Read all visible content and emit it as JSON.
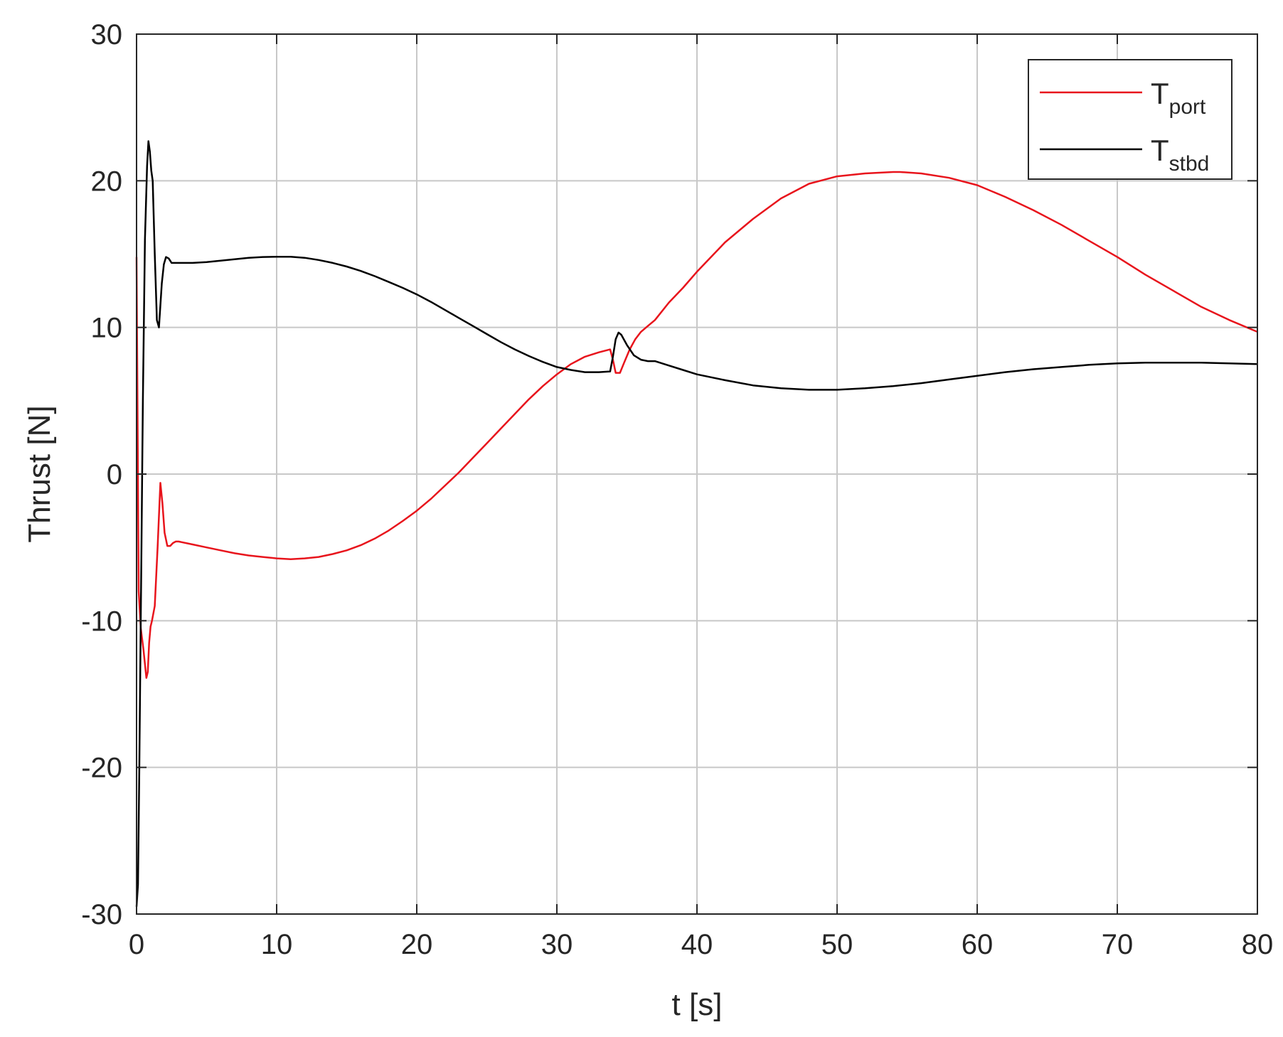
{
  "chart_data": {
    "type": "line",
    "title": "",
    "xlabel": "t [s]",
    "ylabel": "Thrust [N]",
    "xlim": [
      0,
      80
    ],
    "ylim": [
      -30,
      30
    ],
    "xticks": [
      0,
      10,
      20,
      30,
      40,
      50,
      60,
      70,
      80
    ],
    "yticks": [
      -30,
      -20,
      -10,
      0,
      10,
      20,
      30
    ],
    "grid": true,
    "legend_position": "top-right",
    "series": [
      {
        "name": "T",
        "name_sub": "port",
        "color": "#e8141c",
        "x": [
          0,
          0.15,
          0.3,
          0.5,
          0.7,
          0.8,
          0.9,
          1.0,
          1.1,
          1.3,
          1.5,
          1.7,
          1.85,
          2.0,
          2.2,
          2.4,
          2.6,
          2.8,
          3,
          4,
          5,
          6,
          7,
          8,
          9,
          10,
          11,
          12,
          13,
          14,
          15,
          16,
          17,
          18,
          19,
          20,
          21,
          22,
          23,
          24,
          25,
          26,
          27,
          28,
          29,
          30,
          31,
          32,
          33,
          33.8,
          34.0,
          34.2,
          34.5,
          34.8,
          35.2,
          35.6,
          36.0,
          36.5,
          37,
          38,
          39,
          40,
          42,
          44,
          46,
          48,
          50,
          52,
          54,
          54.5,
          56,
          58,
          60,
          62,
          64,
          66,
          68,
          70,
          72,
          74,
          76,
          78,
          80
        ],
        "y": [
          14.8,
          -8.0,
          -10.5,
          -12.0,
          -13.9,
          -13.5,
          -11.5,
          -10.4,
          -10.0,
          -9.0,
          -5.0,
          -0.6,
          -2.0,
          -4.0,
          -4.9,
          -4.9,
          -4.7,
          -4.6,
          -4.6,
          -4.8,
          -5.0,
          -5.2,
          -5.4,
          -5.55,
          -5.65,
          -5.75,
          -5.8,
          -5.75,
          -5.65,
          -5.45,
          -5.2,
          -4.85,
          -4.4,
          -3.85,
          -3.2,
          -2.5,
          -1.7,
          -0.8,
          0.1,
          1.1,
          2.1,
          3.1,
          4.1,
          5.1,
          6.0,
          6.8,
          7.5,
          8.0,
          8.3,
          8.5,
          7.8,
          6.9,
          6.9,
          7.6,
          8.5,
          9.2,
          9.7,
          10.1,
          10.5,
          11.7,
          12.7,
          13.8,
          15.8,
          17.4,
          18.8,
          19.8,
          20.3,
          20.5,
          20.6,
          20.6,
          20.5,
          20.2,
          19.7,
          18.9,
          18.0,
          17.0,
          15.9,
          14.8,
          13.6,
          12.5,
          11.4,
          10.5,
          9.7
        ]
      },
      {
        "name": "T",
        "name_sub": "stbd",
        "color": "#000000",
        "x": [
          0,
          0.1,
          0.2,
          0.3,
          0.45,
          0.6,
          0.75,
          0.85,
          0.95,
          1.05,
          1.15,
          1.3,
          1.45,
          1.6,
          1.7,
          1.8,
          1.95,
          2.1,
          2.3,
          2.5,
          2.8,
          3,
          4,
          5,
          6,
          7,
          8,
          9,
          10,
          11,
          12,
          13,
          14,
          15,
          16,
          17,
          18,
          19,
          20,
          21,
          22,
          23,
          24,
          25,
          26,
          27,
          28,
          29,
          30,
          31,
          32,
          33,
          33.8,
          34.0,
          34.2,
          34.4,
          34.6,
          35.0,
          35.5,
          36,
          36.5,
          37,
          38,
          39,
          40,
          42,
          44,
          46,
          48,
          50,
          52,
          54,
          56,
          58,
          60,
          62,
          64,
          66,
          68,
          70,
          72,
          74,
          76,
          78,
          80
        ],
        "y": [
          -29.5,
          -28.0,
          -20.0,
          -10.0,
          5.0,
          16.0,
          21.0,
          22.7,
          22.0,
          20.7,
          20.0,
          15.0,
          10.5,
          10.0,
          11.5,
          13.0,
          14.3,
          14.8,
          14.7,
          14.4,
          14.4,
          14.4,
          14.4,
          14.45,
          14.55,
          14.65,
          14.75,
          14.8,
          14.82,
          14.82,
          14.75,
          14.6,
          14.4,
          14.15,
          13.85,
          13.5,
          13.1,
          12.7,
          12.25,
          11.75,
          11.2,
          10.65,
          10.1,
          9.55,
          9.0,
          8.5,
          8.05,
          7.65,
          7.3,
          7.1,
          6.95,
          6.95,
          7.0,
          8.0,
          9.2,
          9.65,
          9.5,
          8.8,
          8.1,
          7.8,
          7.7,
          7.7,
          7.4,
          7.1,
          6.8,
          6.4,
          6.05,
          5.85,
          5.75,
          5.75,
          5.85,
          6.0,
          6.2,
          6.45,
          6.7,
          6.95,
          7.15,
          7.3,
          7.45,
          7.55,
          7.6,
          7.6,
          7.6,
          7.55,
          7.5
        ]
      }
    ]
  }
}
